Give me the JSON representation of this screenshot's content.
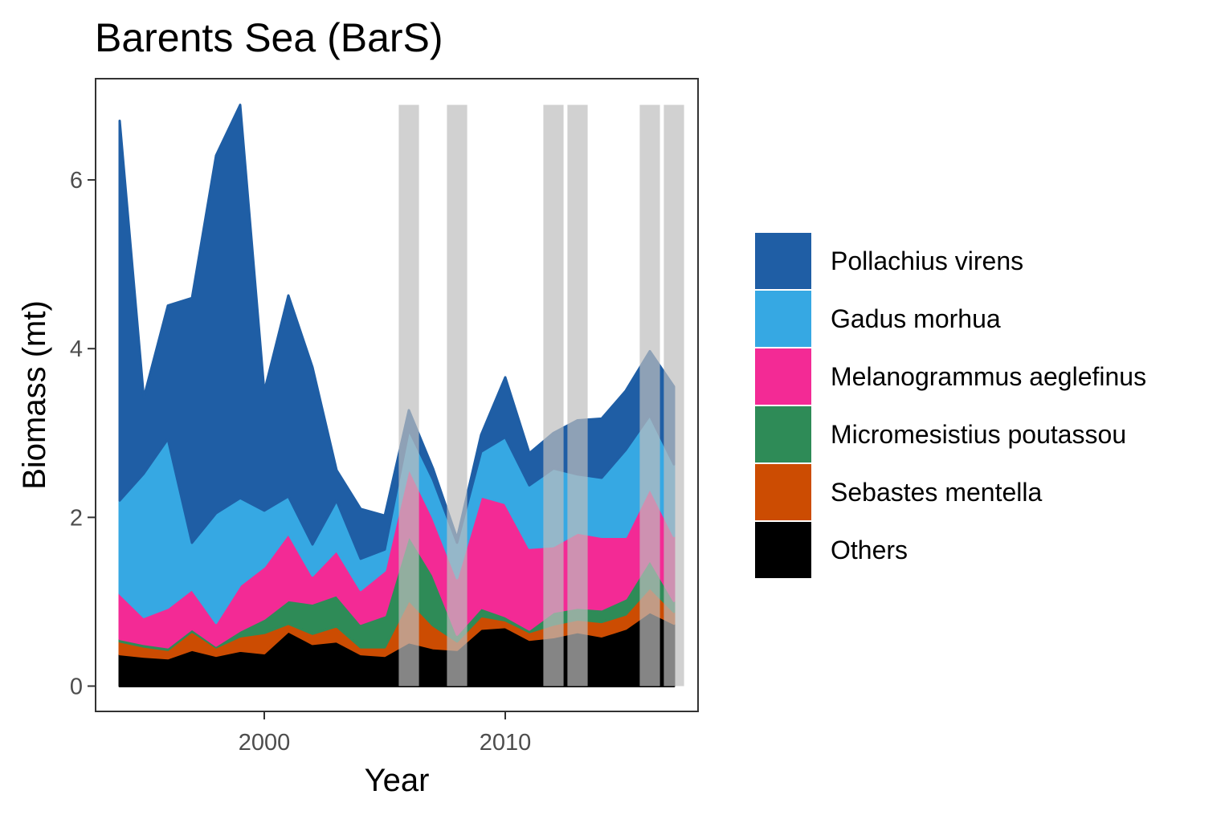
{
  "chart_data": {
    "type": "area",
    "stacked": true,
    "title": "Barents Sea (BarS)",
    "xlabel": "Year",
    "ylabel": "Biomass (mt)",
    "xlim": [
      1993,
      2018
    ],
    "ylim": [
      -0.3,
      7.2
    ],
    "x_ticks": [
      2000,
      2010
    ],
    "y_ticks": [
      0,
      2,
      4,
      6
    ],
    "legend_position": "right",
    "grid": false,
    "x": [
      1994,
      1995,
      1996,
      1997,
      1998,
      1999,
      2000,
      2001,
      2002,
      2003,
      2004,
      2005,
      2006,
      2007,
      2008,
      2009,
      2010,
      2011,
      2012,
      2013,
      2014,
      2015,
      2016,
      2017
    ],
    "series": [
      {
        "name": "Others",
        "color": "#000000",
        "values": [
          0.38,
          0.35,
          0.33,
          0.43,
          0.36,
          0.42,
          0.39,
          0.65,
          0.5,
          0.53,
          0.38,
          0.36,
          0.52,
          0.45,
          0.43,
          0.68,
          0.7,
          0.55,
          0.58,
          0.64,
          0.59,
          0.68,
          0.88,
          0.74
        ]
      },
      {
        "name": "Sebastes mentella",
        "color": "#cc4c02",
        "values": [
          0.15,
          0.12,
          0.1,
          0.22,
          0.1,
          0.17,
          0.24,
          0.09,
          0.12,
          0.18,
          0.08,
          0.1,
          0.5,
          0.27,
          0.1,
          0.15,
          0.08,
          0.09,
          0.15,
          0.15,
          0.17,
          0.17,
          0.29,
          0.14
        ]
      },
      {
        "name": "Micromesistius poutassou",
        "color": "#2e8b57",
        "values": [
          0.03,
          0.03,
          0.03,
          0.03,
          0.02,
          0.07,
          0.17,
          0.28,
          0.36,
          0.37,
          0.28,
          0.38,
          0.77,
          0.6,
          0.08,
          0.1,
          0.05,
          0.03,
          0.15,
          0.14,
          0.15,
          0.19,
          0.33,
          0.13
        ]
      },
      {
        "name": "Melanogrammus aeglefinus",
        "color": "#f32a95",
        "values": [
          0.54,
          0.32,
          0.47,
          0.47,
          0.27,
          0.54,
          0.62,
          0.79,
          0.33,
          0.53,
          0.4,
          0.53,
          0.8,
          0.68,
          0.67,
          1.32,
          1.34,
          0.97,
          0.78,
          0.89,
          0.86,
          0.73,
          0.85,
          0.77
        ]
      },
      {
        "name": "Gadus morhua",
        "color": "#36a8e3",
        "values": [
          1.1,
          1.7,
          2.0,
          0.55,
          1.3,
          1.03,
          0.66,
          0.44,
          0.37,
          0.59,
          0.37,
          0.25,
          0.45,
          0.45,
          0.42,
          0.53,
          0.78,
          0.74,
          0.92,
          0.69,
          0.7,
          1.03,
          0.86,
          0.85
        ]
      },
      {
        "name": "Pollachius virens",
        "color": "#1f5ea5",
        "values": [
          4.5,
          0.9,
          1.58,
          2.9,
          4.24,
          4.66,
          1.41,
          2.38,
          2.1,
          0.36,
          0.59,
          0.4,
          0.23,
          0.13,
          0.05,
          0.2,
          0.71,
          0.38,
          0.42,
          0.64,
          0.7,
          0.7,
          0.76,
          0.92
        ]
      }
    ],
    "highlight_years": [
      2006,
      2008,
      2012,
      2013,
      2016,
      2017
    ]
  },
  "legend_order": [
    "Pollachius virens",
    "Gadus morhua",
    "Melanogrammus aeglefinus",
    "Micromesistius poutassou",
    "Sebastes mentella",
    "Others"
  ]
}
